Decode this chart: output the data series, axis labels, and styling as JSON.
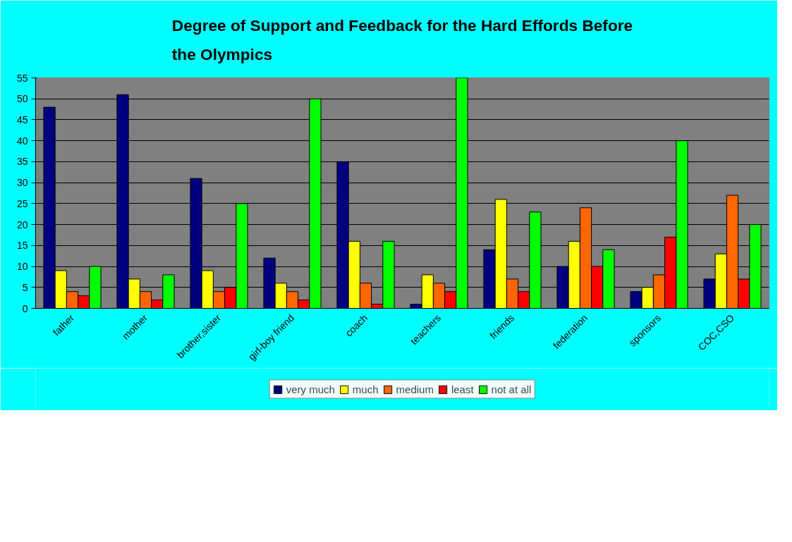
{
  "chart_data": {
    "type": "bar",
    "title": "Degree of Support and Feedback for the Hard Effords Before the Olympics",
    "categories": [
      "father",
      "mother",
      "brother,sister",
      "girl-boy friend",
      "coach",
      "teachers",
      "friends",
      "federation",
      "sponsors",
      "COC,CSO"
    ],
    "series": [
      {
        "name": "very much",
        "color": "#000080",
        "values": [
          48,
          51,
          31,
          12,
          35,
          1,
          14,
          10,
          4,
          7
        ]
      },
      {
        "name": "much",
        "color": "#ffff00",
        "values": [
          9,
          7,
          9,
          6,
          16,
          8,
          26,
          16,
          5,
          13
        ]
      },
      {
        "name": "medium",
        "color": "#ff6600",
        "values": [
          4,
          4,
          4,
          4,
          6,
          6,
          7,
          24,
          8,
          27
        ]
      },
      {
        "name": "least",
        "color": "#ff0000",
        "values": [
          3,
          2,
          5,
          2,
          1,
          4,
          4,
          10,
          17,
          7
        ]
      },
      {
        "name": "not at all",
        "color": "#00ff00",
        "values": [
          10,
          8,
          25,
          50,
          16,
          55,
          23,
          14,
          40,
          20
        ]
      }
    ],
    "ylim": [
      0,
      55
    ],
    "yticks": [
      0,
      5,
      10,
      15,
      20,
      25,
      30,
      35,
      40,
      45,
      50,
      55
    ],
    "grid": "y",
    "legend": "bottom"
  }
}
